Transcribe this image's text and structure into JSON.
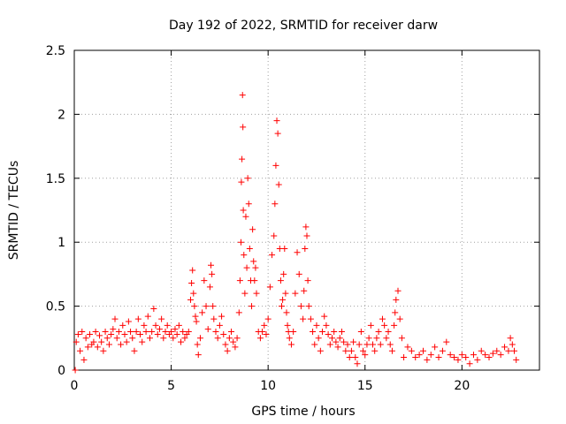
{
  "chart_data": {
    "type": "scatter",
    "title": "Day 192 of 2022, SRMTID for receiver darw",
    "xlabel": "GPS time / hours",
    "ylabel": "SRMTID / TECUs",
    "xlim": [
      0,
      24
    ],
    "ylim": [
      0,
      2.5
    ],
    "x_ticks": [
      0,
      5,
      10,
      15,
      20
    ],
    "x_tick_labels": [
      "0",
      "5",
      "10",
      "15",
      "20"
    ],
    "y_ticks": [
      0,
      0.5,
      1,
      1.5,
      2,
      2.5
    ],
    "y_tick_labels": [
      "0",
      "0.5",
      "1",
      "1.5",
      "2",
      "2.5"
    ],
    "grid": true,
    "marker": "plus",
    "series": [
      {
        "name": "SRMTID",
        "color": "#ff0000",
        "x": [
          0.05,
          0.1,
          0.2,
          0.3,
          0.4,
          0.5,
          0.6,
          0.7,
          0.8,
          0.9,
          1.0,
          1.1,
          1.2,
          1.3,
          1.4,
          1.5,
          1.6,
          1.7,
          1.8,
          1.9,
          2.0,
          2.1,
          2.2,
          2.3,
          2.4,
          2.5,
          2.6,
          2.7,
          2.8,
          2.9,
          3.0,
          3.1,
          3.2,
          3.3,
          3.4,
          3.5,
          3.6,
          3.7,
          3.8,
          3.9,
          4.0,
          4.1,
          4.2,
          4.3,
          4.4,
          4.5,
          4.6,
          4.7,
          4.8,
          4.9,
          5.0,
          5.1,
          5.2,
          5.3,
          5.4,
          5.5,
          5.6,
          5.7,
          5.8,
          5.9,
          6.0,
          6.05,
          6.1,
          6.15,
          6.2,
          6.25,
          6.3,
          6.35,
          6.4,
          6.5,
          6.6,
          6.7,
          6.8,
          6.9,
          7.0,
          7.05,
          7.1,
          7.15,
          7.2,
          7.3,
          7.4,
          7.5,
          7.6,
          7.7,
          7.8,
          7.9,
          8.0,
          8.1,
          8.2,
          8.3,
          8.4,
          8.5,
          8.55,
          8.6,
          8.62,
          8.65,
          8.68,
          8.7,
          8.72,
          8.75,
          8.8,
          8.85,
          8.9,
          8.95,
          9.0,
          9.05,
          9.1,
          9.15,
          9.2,
          9.25,
          9.3,
          9.35,
          9.4,
          9.5,
          9.6,
          9.7,
          9.8,
          9.9,
          10.0,
          10.1,
          10.2,
          10.3,
          10.35,
          10.4,
          10.45,
          10.5,
          10.55,
          10.6,
          10.65,
          10.7,
          10.75,
          10.8,
          10.85,
          10.9,
          10.95,
          11.0,
          11.05,
          11.1,
          11.2,
          11.3,
          11.4,
          11.5,
          11.6,
          11.7,
          11.8,
          11.85,
          11.9,
          11.95,
          12.0,
          12.05,
          12.1,
          12.2,
          12.3,
          12.4,
          12.5,
          12.6,
          12.7,
          12.8,
          12.9,
          13.0,
          13.1,
          13.2,
          13.3,
          13.4,
          13.5,
          13.6,
          13.7,
          13.8,
          13.9,
          14.0,
          14.1,
          14.2,
          14.3,
          14.4,
          14.5,
          14.6,
          14.7,
          14.8,
          14.9,
          15.0,
          15.1,
          15.2,
          15.3,
          15.4,
          15.5,
          15.6,
          15.7,
          15.8,
          15.9,
          16.0,
          16.1,
          16.2,
          16.3,
          16.4,
          16.5,
          16.55,
          16.6,
          16.7,
          16.8,
          16.9,
          17.0,
          17.2,
          17.4,
          17.6,
          17.8,
          18.0,
          18.2,
          18.4,
          18.6,
          18.8,
          19.0,
          19.2,
          19.4,
          19.6,
          19.8,
          20.0,
          20.2,
          20.4,
          20.6,
          20.8,
          21.0,
          21.2,
          21.4,
          21.6,
          21.8,
          22.0,
          22.2,
          22.4,
          22.5,
          22.6,
          22.7,
          22.8
        ],
        "y": [
          0.0,
          0.22,
          0.28,
          0.15,
          0.3,
          0.08,
          0.25,
          0.18,
          0.28,
          0.2,
          0.22,
          0.3,
          0.18,
          0.27,
          0.22,
          0.15,
          0.3,
          0.25,
          0.2,
          0.28,
          0.32,
          0.4,
          0.25,
          0.3,
          0.2,
          0.35,
          0.28,
          0.22,
          0.38,
          0.3,
          0.25,
          0.15,
          0.3,
          0.4,
          0.28,
          0.22,
          0.35,
          0.3,
          0.42,
          0.25,
          0.3,
          0.48,
          0.35,
          0.28,
          0.32,
          0.4,
          0.25,
          0.3,
          0.35,
          0.28,
          0.3,
          0.25,
          0.32,
          0.28,
          0.35,
          0.22,
          0.3,
          0.25,
          0.28,
          0.3,
          0.55,
          0.68,
          0.78,
          0.6,
          0.5,
          0.42,
          0.38,
          0.2,
          0.12,
          0.25,
          0.45,
          0.7,
          0.5,
          0.32,
          0.65,
          0.82,
          0.75,
          0.5,
          0.4,
          0.3,
          0.25,
          0.35,
          0.42,
          0.28,
          0.2,
          0.15,
          0.25,
          0.3,
          0.22,
          0.18,
          0.25,
          0.45,
          0.7,
          1.0,
          1.47,
          1.65,
          2.15,
          1.9,
          1.25,
          0.9,
          0.6,
          1.2,
          0.8,
          1.5,
          1.3,
          0.95,
          0.7,
          0.5,
          1.1,
          0.85,
          0.7,
          0.8,
          0.6,
          0.3,
          0.25,
          0.3,
          0.35,
          0.28,
          0.4,
          0.65,
          0.9,
          1.05,
          1.3,
          1.6,
          1.95,
          1.85,
          1.45,
          0.95,
          0.7,
          0.5,
          0.55,
          0.75,
          0.95,
          0.6,
          0.45,
          0.35,
          0.3,
          0.25,
          0.2,
          0.3,
          0.6,
          0.92,
          0.75,
          0.5,
          0.4,
          0.62,
          0.95,
          1.12,
          1.05,
          0.7,
          0.5,
          0.4,
          0.3,
          0.2,
          0.35,
          0.25,
          0.15,
          0.3,
          0.42,
          0.35,
          0.28,
          0.2,
          0.25,
          0.3,
          0.22,
          0.18,
          0.25,
          0.3,
          0.22,
          0.15,
          0.2,
          0.1,
          0.15,
          0.22,
          0.1,
          0.05,
          0.2,
          0.3,
          0.15,
          0.12,
          0.2,
          0.25,
          0.35,
          0.2,
          0.15,
          0.25,
          0.3,
          0.2,
          0.4,
          0.35,
          0.25,
          0.3,
          0.2,
          0.15,
          0.35,
          0.45,
          0.55,
          0.62,
          0.4,
          0.25,
          0.1,
          0.18,
          0.15,
          0.1,
          0.12,
          0.15,
          0.08,
          0.12,
          0.18,
          0.1,
          0.15,
          0.22,
          0.12,
          0.1,
          0.08,
          0.12,
          0.1,
          0.05,
          0.12,
          0.08,
          0.15,
          0.12,
          0.1,
          0.13,
          0.15,
          0.12,
          0.18,
          0.15,
          0.25,
          0.2,
          0.15,
          0.08
        ]
      }
    ]
  }
}
